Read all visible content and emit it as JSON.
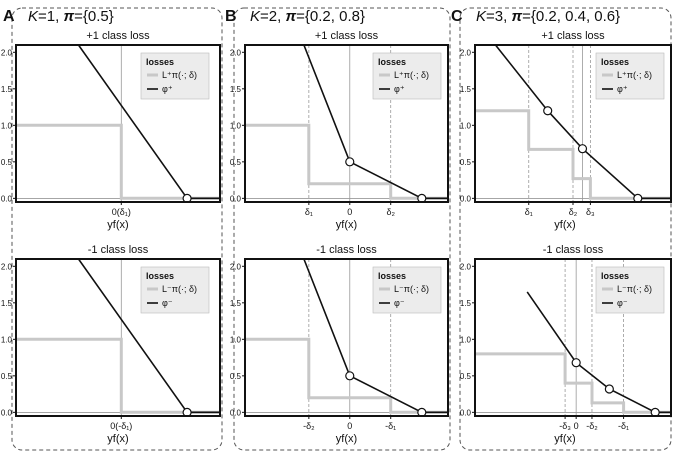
{
  "panels": [
    {
      "letter": "A",
      "title": {
        "prefix": "K=1, ",
        "pi": "π",
        "values": "={0.5}"
      },
      "subplots": [
        {
          "label": "+1 class loss",
          "xlabel": "yf(x)",
          "legend": {
            "title": "losses",
            "items": [
              "L⁺π(·; δ)",
              "φ⁺"
            ]
          },
          "chart_data": {
            "type": "line",
            "xlim": [
              -3.2,
              3.0
            ],
            "ylim": [
              -0.05,
              2.1
            ],
            "yticks": [
              0.0,
              0.5,
              1.0,
              1.5,
              2.0
            ],
            "ytick_labels": [
              "0.0",
              "0.5",
              "1.0",
              "1.5",
              "2.0"
            ],
            "xticks": [
              {
                "x": 0,
                "label": "0(δ₁)"
              }
            ],
            "delta_lines": [],
            "axis_line_x": 0,
            "series": [
              {
                "name": "L⁺π(·; δ)",
                "style": "step",
                "color": "#c8c8c8",
                "x": [
                  -3.2,
                  0,
                  0,
                  3.0
                ],
                "y": [
                  1.0,
                  1.0,
                  0.0,
                  0.0
                ]
              },
              {
                "name": "φ⁺",
                "style": "line",
                "color": "#111111",
                "x": [
                  -1.3,
                  2.0,
                  3.0
                ],
                "y": [
                  2.1,
                  0.0,
                  0.0
                ]
              }
            ],
            "markers": [
              {
                "x": 2.0,
                "y": 0.0
              }
            ]
          }
        },
        {
          "label": "-1 class loss",
          "xlabel": "yf(x)",
          "legend": {
            "title": "losses",
            "items": [
              "L⁻π(·; δ)",
              "φ⁻"
            ]
          },
          "chart_data": {
            "type": "line",
            "xlim": [
              -3.2,
              3.0
            ],
            "ylim": [
              -0.05,
              2.1
            ],
            "yticks": [
              0.0,
              0.5,
              1.0,
              1.5,
              2.0
            ],
            "ytick_labels": [
              "0.0",
              "0.5",
              "1.0",
              "1.5",
              "2.0"
            ],
            "xticks": [
              {
                "x": 0,
                "label": "0(-δ₁)"
              }
            ],
            "delta_lines": [],
            "axis_line_x": 0,
            "series": [
              {
                "name": "L⁻π(·; δ)",
                "style": "step",
                "color": "#c8c8c8",
                "x": [
                  -3.2,
                  0,
                  0,
                  3.0
                ],
                "y": [
                  1.0,
                  1.0,
                  0.0,
                  0.0
                ]
              },
              {
                "name": "φ⁻",
                "style": "line",
                "color": "#111111",
                "x": [
                  -1.3,
                  2.0,
                  3.0
                ],
                "y": [
                  2.1,
                  0.0,
                  0.0
                ]
              }
            ],
            "markers": [
              {
                "x": 2.0,
                "y": 0.0
              }
            ]
          }
        }
      ]
    },
    {
      "letter": "B",
      "title": {
        "prefix": "K=2, ",
        "pi": "π",
        "values": "={0.2, 0.8}"
      },
      "subplots": [
        {
          "label": "+1 class loss",
          "xlabel": "yf(x)",
          "legend": {
            "title": "losses",
            "items": [
              "L⁺π(·; δ)",
              "φ⁺"
            ]
          },
          "chart_data": {
            "type": "line",
            "xlim": [
              -3.2,
              3.0
            ],
            "ylim": [
              -0.05,
              2.1
            ],
            "yticks": [
              0.0,
              0.5,
              1.0,
              1.5,
              2.0
            ],
            "ytick_labels": [
              "0.0",
              "0.5",
              "1.0",
              "1.5",
              "2.0"
            ],
            "xticks": [
              {
                "x": -1.25,
                "label": "δ₁"
              },
              {
                "x": 0,
                "label": "0"
              },
              {
                "x": 1.25,
                "label": "δ₂"
              }
            ],
            "delta_lines": [
              -1.25,
              1.25
            ],
            "axis_line_x": 0,
            "series": [
              {
                "name": "L⁺π(·; δ)",
                "style": "step",
                "color": "#c8c8c8",
                "x": [
                  -3.2,
                  -1.25,
                  -1.25,
                  1.25,
                  1.25,
                  3.0
                ],
                "y": [
                  1.0,
                  1.0,
                  0.2,
                  0.2,
                  0.0,
                  0.0
                ]
              },
              {
                "name": "φ⁺",
                "style": "line",
                "color": "#111111",
                "x": [
                  -1.4,
                  0,
                  2.2,
                  3.0
                ],
                "y": [
                  2.1,
                  0.5,
                  0.0,
                  0.0
                ]
              }
            ],
            "markers": [
              {
                "x": 0,
                "y": 0.5
              },
              {
                "x": 2.2,
                "y": 0.0
              }
            ]
          }
        },
        {
          "label": "-1 class loss",
          "xlabel": "yf(x)",
          "legend": {
            "title": "losses",
            "items": [
              "L⁻π(·; δ)",
              "φ⁻"
            ]
          },
          "chart_data": {
            "type": "line",
            "xlim": [
              -3.2,
              3.0
            ],
            "ylim": [
              -0.05,
              2.1
            ],
            "yticks": [
              0.0,
              0.5,
              1.0,
              1.5,
              2.0
            ],
            "ytick_labels": [
              "0.0",
              "0.5",
              "1.0",
              "1.5",
              "2.0"
            ],
            "xticks": [
              {
                "x": -1.25,
                "label": "-δ₂"
              },
              {
                "x": 0,
                "label": "0"
              },
              {
                "x": 1.25,
                "label": "-δ₁"
              }
            ],
            "delta_lines": [
              -1.25,
              1.25
            ],
            "axis_line_x": 0,
            "series": [
              {
                "name": "L⁻π(·; δ)",
                "style": "step",
                "color": "#c8c8c8",
                "x": [
                  -3.2,
                  -1.25,
                  -1.25,
                  1.25,
                  1.25,
                  3.0
                ],
                "y": [
                  1.0,
                  1.0,
                  0.2,
                  0.2,
                  0.0,
                  0.0
                ]
              },
              {
                "name": "φ⁻",
                "style": "line",
                "color": "#111111",
                "x": [
                  -1.4,
                  0,
                  2.2,
                  3.0
                ],
                "y": [
                  2.1,
                  0.5,
                  0.0,
                  0.0
                ]
              }
            ],
            "markers": [
              {
                "x": 0,
                "y": 0.5
              },
              {
                "x": 2.2,
                "y": 0.0
              }
            ]
          }
        }
      ]
    },
    {
      "letter": "C",
      "title": {
        "prefix": "K=3, ",
        "pi": "π",
        "values": "={0.2, 0.4, 0.6}"
      },
      "subplots": [
        {
          "label": "+1 class loss",
          "xlabel": "yf(x)",
          "legend": {
            "title": "losses",
            "items": [
              "L⁺π(·; δ)",
              "φ⁺"
            ]
          },
          "chart_data": {
            "type": "line",
            "xlim": [
              -3.2,
              3.0
            ],
            "ylim": [
              -0.05,
              2.1
            ],
            "yticks": [
              0.0,
              0.5,
              1.0,
              1.5,
              2.0
            ],
            "ytick_labels": [
              "0.0",
              "0.5",
              "1.0",
              "1.5",
              "2.0"
            ],
            "xticks": [
              {
                "x": -1.5,
                "label": "δ₁"
              },
              {
                "x": -0.1,
                "label": "δ₂"
              },
              {
                "x": 0.45,
                "label": "δ₃"
              }
            ],
            "delta_lines": [
              -1.5,
              -0.1,
              0.45
            ],
            "axis_line_x": 0.2,
            "series": [
              {
                "name": "L⁺π(·; δ)",
                "style": "step",
                "color": "#c8c8c8",
                "x": [
                  -3.2,
                  -1.5,
                  -1.5,
                  -0.1,
                  -0.1,
                  0.45,
                  0.45,
                  3.0
                ],
                "y": [
                  1.2,
                  1.2,
                  0.67,
                  0.67,
                  0.27,
                  0.27,
                  0.0,
                  0.0
                ]
              },
              {
                "name": "φ⁺",
                "style": "line",
                "color": "#111111",
                "x": [
                  -2.55,
                  -0.9,
                  0.2,
                  1.95,
                  3.0
                ],
                "y": [
                  2.1,
                  1.2,
                  0.68,
                  0.0,
                  0.0
                ]
              }
            ],
            "markers": [
              {
                "x": -0.9,
                "y": 1.2
              },
              {
                "x": 0.2,
                "y": 0.68
              },
              {
                "x": 1.95,
                "y": 0.0
              }
            ]
          }
        },
        {
          "label": "-1 class loss",
          "xlabel": "yf(x)",
          "legend": {
            "title": "losses",
            "items": [
              "L⁻π(·; δ)",
              "φ⁻"
            ]
          },
          "chart_data": {
            "type": "line",
            "xlim": [
              -3.2,
              3.0
            ],
            "ylim": [
              -0.05,
              2.1
            ],
            "yticks": [
              0.0,
              0.5,
              1.0,
              1.5,
              2.0
            ],
            "ytick_labels": [
              "0.0",
              "0.5",
              "1.0",
              "1.5",
              "2.0"
            ],
            "xticks": [
              {
                "x": -0.35,
                "label": "-δ₃"
              },
              {
                "x": 0,
                "label": "0"
              },
              {
                "x": 0.5,
                "label": "-δ₂"
              },
              {
                "x": 1.5,
                "label": "-δ₁"
              }
            ],
            "delta_lines": [
              -0.35,
              0.5,
              1.5
            ],
            "axis_line_x": 0,
            "series": [
              {
                "name": "L⁻π(·; δ)",
                "style": "step",
                "color": "#c8c8c8",
                "x": [
                  -3.2,
                  -0.35,
                  -0.35,
                  0.5,
                  0.5,
                  1.5,
                  1.5,
                  3.0
                ],
                "y": [
                  0.8,
                  0.8,
                  0.4,
                  0.4,
                  0.13,
                  0.13,
                  0.0,
                  0.0
                ]
              },
              {
                "name": "φ⁻",
                "style": "line",
                "color": "#111111",
                "x": [
                  -1.55,
                  0,
                  1.05,
                  2.5,
                  3.0
                ],
                "y": [
                  1.65,
                  0.68,
                  0.32,
                  0.0,
                  0.0
                ]
              }
            ],
            "markers": [
              {
                "x": 0,
                "y": 0.68
              },
              {
                "x": 1.05,
                "y": 0.32
              },
              {
                "x": 2.5,
                "y": 0.0
              }
            ]
          }
        }
      ]
    }
  ]
}
